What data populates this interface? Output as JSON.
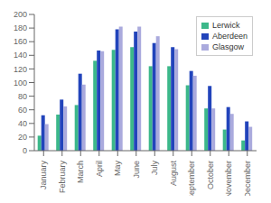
{
  "chart_data": {
    "type": "bar",
    "categories": [
      "January",
      "February",
      "March",
      "April",
      "May",
      "June",
      "July",
      "August",
      "September",
      "October",
      "November",
      "December"
    ],
    "series": [
      {
        "name": "Lerwick",
        "color": "#3cb88a",
        "values": [
          22,
          53,
          67,
          132,
          148,
          152,
          124,
          124,
          96,
          62,
          31,
          15
        ]
      },
      {
        "name": "Aberdeen",
        "color": "#2244bb",
        "values": [
          52,
          75,
          113,
          147,
          178,
          175,
          158,
          152,
          117,
          95,
          64,
          43
        ]
      },
      {
        "name": "Glasgow",
        "color": "#aaaadd",
        "values": [
          39,
          65,
          97,
          146,
          182,
          182,
          168,
          149,
          110,
          62,
          54,
          35
        ]
      }
    ],
    "ylim": [
      0,
      200
    ],
    "yticks": [
      0,
      20,
      40,
      60,
      80,
      100,
      120,
      140,
      160,
      180,
      200
    ],
    "grid": false,
    "legend": "upper right"
  }
}
